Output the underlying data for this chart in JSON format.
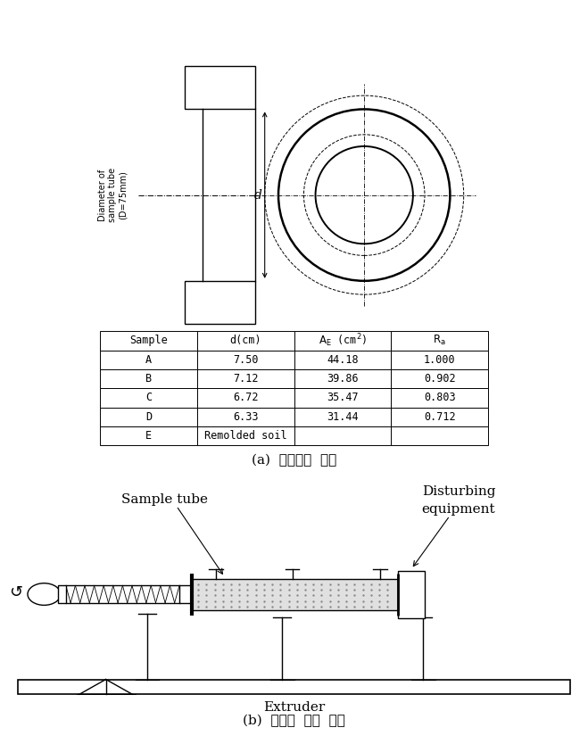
{
  "caption_a": "(a)  시료교란  장치",
  "caption_b": "(b)  시료의  교란  과정",
  "label_sample_tube": "Sample tube",
  "label_disturbing_1": "Disturbing",
  "label_disturbing_2": "equipment",
  "label_extruder": "Extruder",
  "label_diameter": "Diameter of\nsample tube\n(D=75mm)",
  "label_d": "d",
  "table_rows": [
    [
      "A",
      "7.50",
      "44.18",
      "1.000"
    ],
    [
      "B",
      "7.12",
      "39.86",
      "0.902"
    ],
    [
      "C",
      "6.72",
      "35.47",
      "0.803"
    ],
    [
      "D",
      "6.33",
      "31.44",
      "0.712"
    ],
    [
      "E",
      "Remolded soil",
      "",
      ""
    ]
  ],
  "bg_color": "#ffffff",
  "line_color": "#000000"
}
